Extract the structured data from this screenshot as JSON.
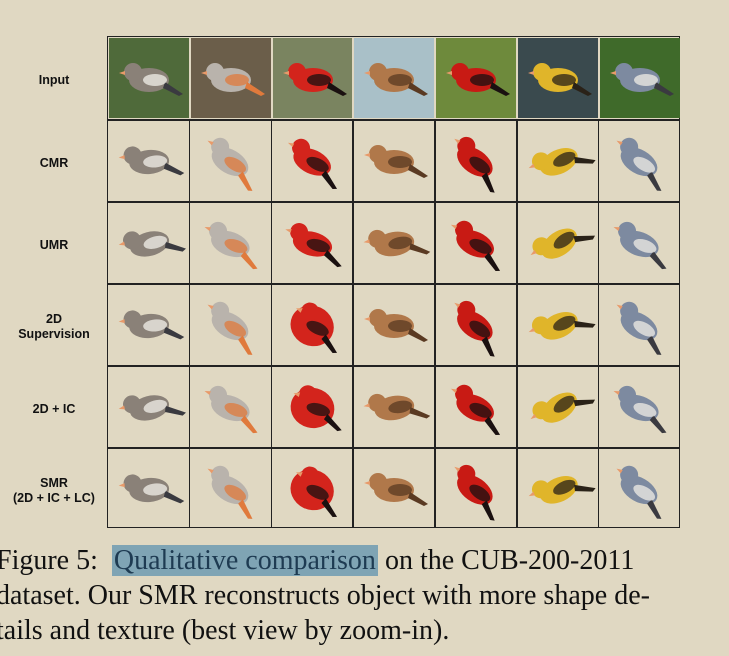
{
  "figure": {
    "row_labels": [
      {
        "line1": "Input",
        "line2": ""
      },
      {
        "line1": "CMR",
        "line2": ""
      },
      {
        "line1": "UMR",
        "line2": ""
      },
      {
        "line1": "2D",
        "line2": "Supervision"
      },
      {
        "line1": "2D + IC",
        "line2": ""
      },
      {
        "line1": "SMR",
        "line2": "(2D + IC + LC)"
      }
    ],
    "columns": [
      {
        "bird": "warbler",
        "body": "#8a8178",
        "accent": "#f2f0ea",
        "bg": "#4f6a3a"
      },
      {
        "bird": "gray-finch",
        "body": "#b9b3ac",
        "accent": "#e07a3c",
        "bg": "#6b5e4a"
      },
      {
        "bird": "cardinal",
        "body": "#d3241c",
        "accent": "#1a1010",
        "bg": "#7a8460"
      },
      {
        "bird": "sparrow",
        "body": "#b0784a",
        "accent": "#5a3a22",
        "bg": "#a9c0c8"
      },
      {
        "bird": "scarlet-tanager",
        "body": "#c81a14",
        "accent": "#1a1010",
        "bg": "#6e8a3c"
      },
      {
        "bird": "oriole",
        "body": "#e0b52a",
        "accent": "#2a2218",
        "bg": "#3a4a4e"
      },
      {
        "bird": "kingfisher",
        "body": "#7d8aa0",
        "accent": "#f0ece6",
        "bg": "#3f6a2a"
      }
    ]
  },
  "caption": {
    "prefix": "Figure 5:",
    "highlight": "Qualitative comparison",
    "line1_rest": "on the CUB-200-2011",
    "line2": "dataset. Our SMR reconstructs object with more shape de-",
    "line3": "tails and texture (best view by zoom-in).",
    "highlight_color": "#7fa4b4"
  }
}
